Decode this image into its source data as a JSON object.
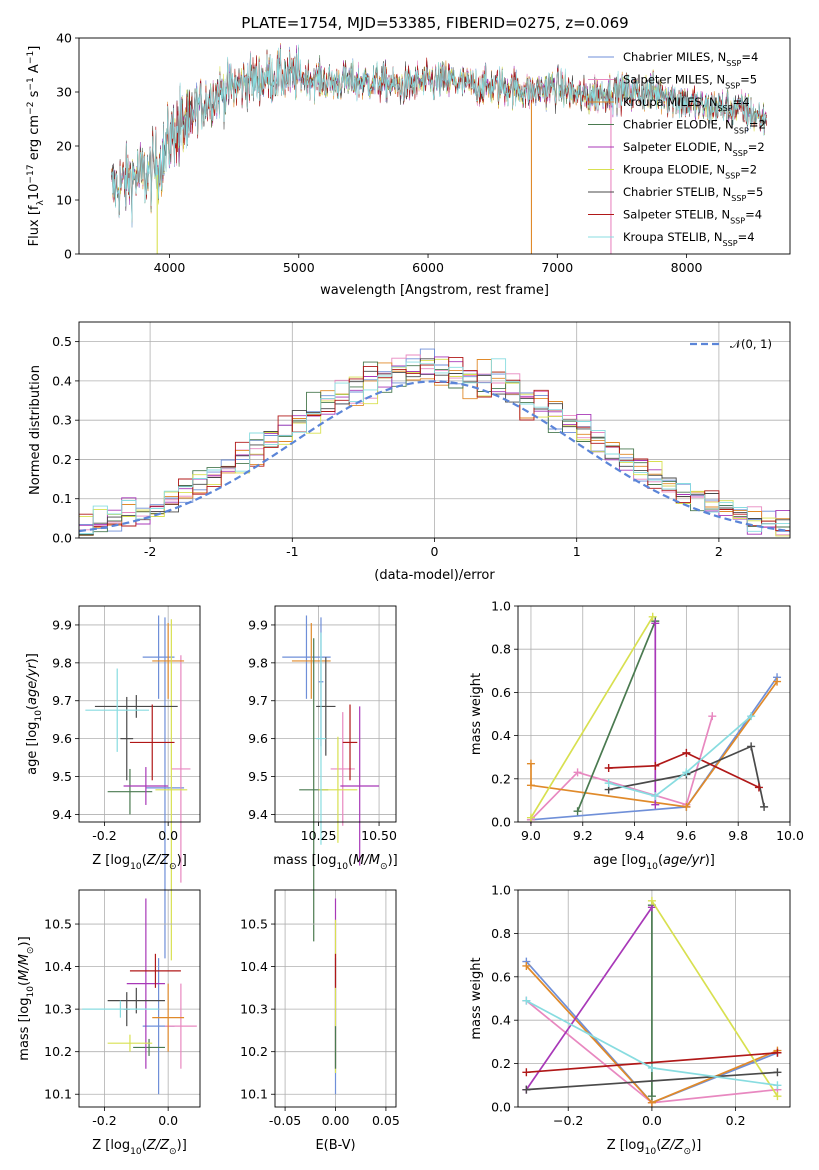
{
  "title": "PLATE=1754, MJD=53385, FIBERID=0275, z=0.069",
  "colors": [
    "#6f8fd8",
    "#e888c0",
    "#e08a2a",
    "#4a7a50",
    "#a838b8",
    "#d8e050",
    "#4a4a4a",
    "#b01818",
    "#88dce0"
  ],
  "legend": [
    {
      "pre": "Chabrier MILES, N",
      "sub": "SSP",
      "post": "=4"
    },
    {
      "pre": "Salpeter MILES, N",
      "sub": "SSP",
      "post": "=5"
    },
    {
      "pre": "Kroupa MILES, N",
      "sub": "SSP",
      "post": "=4"
    },
    {
      "pre": "Chabrier ELODIE, N",
      "sub": "SSP",
      "post": "=2"
    },
    {
      "pre": "Salpeter ELODIE, N",
      "sub": "SSP",
      "post": "=2"
    },
    {
      "pre": "Kroupa ELODIE, N",
      "sub": "SSP",
      "post": "=2"
    },
    {
      "pre": "Chabrier STELIB, N",
      "sub": "SSP",
      "post": "=5"
    },
    {
      "pre": "Salpeter STELIB, N",
      "sub": "SSP",
      "post": "=4"
    },
    {
      "pre": "Kroupa STELIB, N",
      "sub": "SSP",
      "post": "=4"
    }
  ],
  "chart_data": [
    {
      "id": "spectrum",
      "type": "line",
      "xlabel": "wavelength [Angstrom, rest frame]",
      "ylabel": "Flux [f_λ10^-17 erg cm^-2 s^-1 A^-1]",
      "xlim": [
        3300,
        8800
      ],
      "ylim": [
        0,
        40
      ],
      "xticks": [
        4000,
        5000,
        6000,
        7000,
        8000
      ],
      "yticks": [
        0,
        10,
        20,
        30,
        40
      ],
      "continuum": [
        [
          3550,
          12
        ],
        [
          3700,
          14
        ],
        [
          3850,
          15
        ],
        [
          3950,
          18
        ],
        [
          4050,
          24
        ],
        [
          4200,
          27
        ],
        [
          4400,
          30
        ],
        [
          4600,
          32
        ],
        [
          4800,
          33
        ],
        [
          5000,
          33
        ],
        [
          5200,
          32
        ],
        [
          5400,
          32
        ],
        [
          5600,
          32
        ],
        [
          5800,
          31
        ],
        [
          6000,
          32
        ],
        [
          6200,
          32
        ],
        [
          6400,
          31
        ],
        [
          6600,
          31
        ],
        [
          6800,
          30
        ],
        [
          7000,
          31
        ],
        [
          7200,
          29
        ],
        [
          7400,
          30
        ],
        [
          7600,
          30
        ],
        [
          7800,
          30
        ],
        [
          8000,
          28
        ],
        [
          8200,
          27
        ],
        [
          8400,
          27
        ],
        [
          8600,
          25
        ]
      ],
      "grid": false
    },
    {
      "id": "residuals",
      "type": "line",
      "xlabel": "(data-model)/error",
      "ylabel": "Normed distribution",
      "xlim": [
        -2.5,
        2.5
      ],
      "ylim": [
        0,
        0.55
      ],
      "xticks": [
        -2,
        -1,
        0,
        1,
        2
      ],
      "yticks": [
        0.0,
        0.1,
        0.2,
        0.3,
        0.4,
        0.5
      ],
      "normal_label": "N(0,1)",
      "grid": true
    },
    {
      "id": "age_vs_Z",
      "type": "scatter",
      "xlabel": "Z [log10(Z/Z⊙)]",
      "ylabel": "age  [log10(age/yr)]",
      "xlim": [
        -0.28,
        0.1
      ],
      "ylim": [
        9.38,
        9.95
      ],
      "xticks": [
        -0.2,
        0.0
      ],
      "yticks": [
        9.4,
        9.5,
        9.6,
        9.7,
        9.8,
        9.9
      ],
      "errorbars": [
        {
          "c": 0,
          "x": -0.03,
          "y": 9.815,
          "xe": 0.05,
          "ye": 0.11
        },
        {
          "c": 0,
          "x": -0.01,
          "y": 9.47,
          "xe": 0.06,
          "ye": 0.45
        },
        {
          "c": 1,
          "x": 0.04,
          "y": 9.52,
          "xe": 0.03,
          "ye": 0.3
        },
        {
          "c": 2,
          "x": 0.0,
          "y": 9.805,
          "xe": 0.05,
          "ye": 0.1
        },
        {
          "c": 3,
          "x": -0.12,
          "y": 9.46,
          "xe": 0.07,
          "ye": 0.06
        },
        {
          "c": 4,
          "x": -0.07,
          "y": 9.475,
          "xe": 0.07,
          "ye": 0.05
        },
        {
          "c": 5,
          "x": 0.01,
          "y": 9.465,
          "xe": 0.05,
          "ye": 0.45
        },
        {
          "c": 6,
          "x": -0.1,
          "y": 9.685,
          "xe": 0.13,
          "ye": 0.03
        },
        {
          "c": 6,
          "x": -0.13,
          "y": 9.6,
          "xe": 0.02,
          "ye": 0.11
        },
        {
          "c": 7,
          "x": -0.05,
          "y": 9.59,
          "xe": 0.07,
          "ye": 0.1
        },
        {
          "c": 8,
          "x": -0.16,
          "y": 9.675,
          "xe": 0.1,
          "ye": 0.11
        }
      ],
      "grid": true
    },
    {
      "id": "age_vs_mass",
      "type": "scatter",
      "xlabel": "mass [log10(M/M⊙)]",
      "ylabel": "",
      "xlim": [
        10.07,
        10.57
      ],
      "ylim": [
        9.38,
        9.95
      ],
      "xticks": [
        10.25,
        10.5
      ],
      "yticks": [
        9.4,
        9.5,
        9.6,
        9.7,
        9.8,
        9.9
      ],
      "errorbars": [
        {
          "c": 0,
          "x": 10.2,
          "y": 9.815,
          "xe": 0.1,
          "ye": 0.11
        },
        {
          "c": 0,
          "x": 10.26,
          "y": 9.75,
          "xe": 0.01,
          "ye": 0.17
        },
        {
          "c": 1,
          "x": 10.35,
          "y": 9.52,
          "xe": 0.05,
          "ye": 0.15
        },
        {
          "c": 2,
          "x": 10.22,
          "y": 9.805,
          "xe": 0.08,
          "ye": 0.1
        },
        {
          "c": 3,
          "x": 10.23,
          "y": 9.465,
          "xe": 0.06,
          "ye": 0.4
        },
        {
          "c": 4,
          "x": 10.42,
          "y": 9.475,
          "xe": 0.08,
          "ye": 0.21
        },
        {
          "c": 5,
          "x": 10.33,
          "y": 9.465,
          "xe": 0.08,
          "ye": 0.14
        },
        {
          "c": 6,
          "x": 10.28,
          "y": 9.685,
          "xe": 0.04,
          "ye": 0.13
        },
        {
          "c": 7,
          "x": 10.38,
          "y": 9.59,
          "xe": 0.03,
          "ye": 0.1
        },
        {
          "c": 8,
          "x": 10.26,
          "y": 9.6,
          "xe": 0.02,
          "ye": 0.28
        }
      ],
      "grid": true
    },
    {
      "id": "weight_vs_age",
      "type": "line",
      "xlabel": "age  [log10(age/yr)]",
      "ylabel": "mass weight",
      "xlim": [
        8.95,
        10.0
      ],
      "ylim": [
        0,
        1.0
      ],
      "xticks": [
        9.0,
        9.2,
        9.4,
        9.6,
        9.8,
        10.0
      ],
      "yticks": [
        0.0,
        0.2,
        0.4,
        0.6,
        0.8,
        1.0
      ],
      "series": [
        {
          "c": 0,
          "points": [
            [
              9.0,
              0.01
            ],
            [
              9.6,
              0.07
            ],
            [
              9.95,
              0.67
            ]
          ]
        },
        {
          "c": 1,
          "points": [
            [
              9.0,
              0.01
            ],
            [
              9.18,
              0.23
            ],
            [
              9.6,
              0.08
            ],
            [
              9.7,
              0.49
            ]
          ]
        },
        {
          "c": 2,
          "points": [
            [
              9.0,
              0.27
            ],
            [
              9.0,
              0.17
            ],
            [
              9.6,
              0.07
            ],
            [
              9.95,
              0.65
            ]
          ]
        },
        {
          "c": 3,
          "points": [
            [
              9.18,
              0.05
            ],
            [
              9.48,
              0.93
            ]
          ]
        },
        {
          "c": 4,
          "points": [
            [
              9.48,
              0.92
            ],
            [
              9.48,
              0.08
            ]
          ]
        },
        {
          "c": 5,
          "points": [
            [
              9.0,
              0.02
            ],
            [
              9.47,
              0.95
            ]
          ]
        },
        {
          "c": 6,
          "points": [
            [
              9.3,
              0.15
            ],
            [
              9.6,
              0.22
            ],
            [
              9.85,
              0.35
            ],
            [
              9.9,
              0.07
            ]
          ]
        },
        {
          "c": 7,
          "points": [
            [
              9.3,
              0.25
            ],
            [
              9.48,
              0.26
            ],
            [
              9.6,
              0.32
            ],
            [
              9.88,
              0.16
            ]
          ]
        },
        {
          "c": 8,
          "points": [
            [
              9.3,
              0.18
            ],
            [
              9.48,
              0.12
            ],
            [
              9.6,
              0.23
            ],
            [
              9.85,
              0.49
            ]
          ]
        }
      ],
      "grid": true
    },
    {
      "id": "mass_vs_Z",
      "type": "scatter",
      "xlabel": "Z [log10(Z/Z⊙)]",
      "ylabel": "mass [log10(M/M⊙)]",
      "xlim": [
        -0.28,
        0.1
      ],
      "ylim": [
        10.07,
        10.58
      ],
      "xticks": [
        -0.2,
        0.0
      ],
      "yticks": [
        10.1,
        10.2,
        10.3,
        10.4,
        10.5
      ],
      "errorbars": [
        {
          "c": 0,
          "x": -0.03,
          "y": 10.26,
          "xe": 0.05,
          "ye": 0.16
        },
        {
          "c": 1,
          "x": 0.04,
          "y": 10.26,
          "xe": 0.05,
          "ye": 0.1
        },
        {
          "c": 2,
          "x": 0.0,
          "y": 10.28,
          "xe": 0.05,
          "ye": 0.08
        },
        {
          "c": 3,
          "x": -0.06,
          "y": 10.21,
          "xe": 0.05,
          "ye": 0.02
        },
        {
          "c": 4,
          "x": -0.07,
          "y": 10.36,
          "xe": 0.06,
          "ye": 0.2
        },
        {
          "c": 5,
          "x": -0.12,
          "y": 10.22,
          "xe": 0.07,
          "ye": 0.02
        },
        {
          "c": 6,
          "x": -0.1,
          "y": 10.32,
          "xe": 0.09,
          "ye": 0.03
        },
        {
          "c": 6,
          "x": -0.13,
          "y": 10.3,
          "xe": 0.01,
          "ye": 0.04
        },
        {
          "c": 7,
          "x": -0.04,
          "y": 10.39,
          "xe": 0.08,
          "ye": 0.04
        },
        {
          "c": 8,
          "x": -0.15,
          "y": 10.3,
          "xe": 0.12,
          "ye": 0.02
        }
      ],
      "grid": true
    },
    {
      "id": "mass_vs_ebv",
      "type": "scatter",
      "xlabel": "E(B-V)",
      "ylabel": "",
      "xlim": [
        -0.06,
        0.06
      ],
      "ylim": [
        10.07,
        10.58
      ],
      "xticks": [
        -0.05,
        0.0,
        0.05
      ],
      "yticks": [
        10.1,
        10.2,
        10.3,
        10.4,
        10.5
      ],
      "errorbars": [
        {
          "c": 0,
          "x": 0.0,
          "y": 10.26,
          "xe": 0.0,
          "ye": 0.16
        },
        {
          "c": 4,
          "x": 0.0,
          "y": 10.36,
          "xe": 0.0,
          "ye": 0.2
        },
        {
          "c": 5,
          "x": 0.0,
          "y": 10.33,
          "xe": 0.0,
          "ye": 0.18
        },
        {
          "c": 7,
          "x": 0.0,
          "y": 10.39,
          "xe": 0.0,
          "ye": 0.04
        },
        {
          "c": 3,
          "x": 0.0,
          "y": 10.21,
          "xe": 0.0,
          "ye": 0.05
        }
      ],
      "grid": true
    },
    {
      "id": "weight_vs_Z",
      "type": "line",
      "xlabel": "Z [log10(Z/Z⊙)]",
      "ylabel": "mass weight",
      "xlim": [
        -0.32,
        0.33
      ],
      "ylim": [
        0,
        1.0
      ],
      "xticks": [
        -0.2,
        0.0,
        0.2
      ],
      "yticks": [
        0.0,
        0.2,
        0.4,
        0.6,
        0.8,
        1.0
      ],
      "series": [
        {
          "c": 0,
          "points": [
            [
              -0.3,
              0.67
            ],
            [
              0.0,
              0.02
            ],
            [
              0.3,
              0.25
            ]
          ]
        },
        {
          "c": 1,
          "points": [
            [
              -0.3,
              0.49
            ],
            [
              0.0,
              0.02
            ],
            [
              0.3,
              0.08
            ]
          ]
        },
        {
          "c": 2,
          "points": [
            [
              -0.3,
              0.65
            ],
            [
              0.0,
              0.02
            ],
            [
              0.3,
              0.26
            ]
          ]
        },
        {
          "c": 3,
          "points": [
            [
              0.0,
              0.93
            ],
            [
              0.0,
              0.05
            ]
          ]
        },
        {
          "c": 4,
          "points": [
            [
              -0.3,
              0.08
            ],
            [
              0.0,
              0.92
            ]
          ]
        },
        {
          "c": 5,
          "points": [
            [
              0.0,
              0.95
            ],
            [
              0.3,
              0.05
            ]
          ]
        },
        {
          "c": 6,
          "points": [
            [
              -0.3,
              0.08
            ],
            [
              0.3,
              0.16
            ]
          ]
        },
        {
          "c": 7,
          "points": [
            [
              -0.3,
              0.16
            ],
            [
              0.3,
              0.25
            ]
          ]
        },
        {
          "c": 8,
          "points": [
            [
              -0.3,
              0.49
            ],
            [
              0.0,
              0.18
            ],
            [
              0.3,
              0.1
            ]
          ]
        }
      ],
      "grid": true
    }
  ]
}
